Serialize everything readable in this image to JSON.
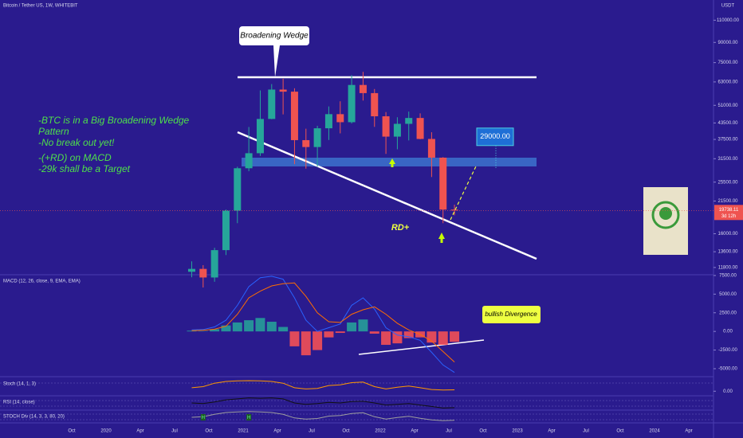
{
  "chart_data": [
    {
      "type": "candlestick",
      "title": "Bitcoin / Tether US, 1W, WHITEBIT",
      "y_axis_label": "USDT",
      "log_scale": true,
      "grid": false,
      "x": [
        "2020-08",
        "2020-09",
        "2020-10",
        "2020-11",
        "2020-12",
        "2021-01",
        "2021-02",
        "2021-03",
        "2021-04",
        "2021-05",
        "2021-06",
        "2021-07",
        "2021-08",
        "2021-09",
        "2021-10",
        "2021-11",
        "2021-12",
        "2022-01",
        "2022-02",
        "2022-03",
        "2022-04",
        "2022-05",
        "2022-06",
        "2022-07"
      ],
      "open": [
        11350,
        11650,
        10780,
        13800,
        19700,
        28900,
        33100,
        45100,
        58800,
        57700,
        37250,
        35000,
        41460,
        47100,
        43800,
        61300,
        56950,
        46200,
        38450,
        43160,
        45500,
        37650,
        31800,
        19900
      ],
      "high": [
        12470,
        12050,
        14100,
        19900,
        29300,
        41950,
        58350,
        61800,
        64850,
        59500,
        41300,
        42400,
        50500,
        52900,
        67000,
        69000,
        59100,
        48000,
        45800,
        48200,
        47450,
        40000,
        31950,
        20800
      ],
      "low": [
        10800,
        9850,
        10370,
        13200,
        17600,
        28130,
        32300,
        45000,
        47000,
        30000,
        28800,
        29300,
        37300,
        39600,
        43300,
        53250,
        42000,
        32900,
        34300,
        37150,
        37550,
        26700,
        17600,
        18900
      ],
      "close": [
        11650,
        10780,
        13800,
        19700,
        28900,
        33100,
        45100,
        58800,
        57700,
        37250,
        35000,
        41460,
        47100,
        43800,
        61300,
        56950,
        46200,
        38450,
        43160,
        45500,
        37650,
        31800,
        19900,
        19738.11
      ],
      "up_color": "#26a69a",
      "down_color": "#ef5350",
      "ylim": [
        11050,
        132000
      ],
      "yticks": [
        {
          "value": 110000,
          "label": "110000.00"
        },
        {
          "value": 90000,
          "label": "90000.00"
        },
        {
          "value": 75000,
          "label": "75000.00"
        },
        {
          "value": 63000,
          "label": "63000.00"
        },
        {
          "value": 51000,
          "label": "51000.00"
        },
        {
          "value": 43500,
          "label": "43500.00"
        },
        {
          "value": 37500,
          "label": "37500.00"
        },
        {
          "value": 31500,
          "label": "31500.00"
        },
        {
          "value": 25500,
          "label": "25500.00"
        },
        {
          "value": 21500,
          "label": "21500.00"
        },
        {
          "value": 16000,
          "label": "16000.00"
        },
        {
          "value": 13600,
          "label": "13600.00"
        },
        {
          "value": 11800,
          "label": "11800.00"
        }
      ],
      "last_price": 19738.11,
      "countdown": "3d 12h",
      "x_axis_labels": [
        "Oct",
        "2020",
        "Apr",
        "Jul",
        "Oct",
        "2021",
        "Apr",
        "Jul",
        "Oct",
        "2022",
        "Apr",
        "Jul",
        "Oct",
        "2023",
        "Apr",
        "Jul",
        "Oct",
        "2024",
        "Apr"
      ],
      "callout": "Broadening Wedge",
      "note_lines": [
        "-BTC is in a Big Broadening Wedge",
        "Pattern",
        "-No break out yet!",
        "-(+RD) on MACD",
        "-29k shall be a Target"
      ],
      "target": {
        "value": 29000,
        "label": "29000.00"
      },
      "divergence": "RD+"
    },
    {
      "type": "macd",
      "title": "MACD (12, 26, close, 9, EMA, EMA)",
      "x": [
        "2020-08",
        "2020-09",
        "2020-10",
        "2020-11",
        "2020-12",
        "2021-01",
        "2021-02",
        "2021-03",
        "2021-04",
        "2021-05",
        "2021-06",
        "2021-07",
        "2021-08",
        "2021-09",
        "2021-10",
        "2021-11",
        "2021-12",
        "2022-01",
        "2022-02",
        "2022-03",
        "2022-04",
        "2022-05",
        "2022-06",
        "2022-07"
      ],
      "histogram": [
        100,
        50,
        300,
        800,
        1200,
        1500,
        1800,
        1300,
        600,
        -2000,
        -3200,
        -2500,
        -800,
        -200,
        1200,
        1600,
        -300,
        -1800,
        -1600,
        -900,
        -800,
        -1500,
        -1800,
        -1400
      ],
      "macd": [
        200,
        250,
        600,
        1500,
        3500,
        6000,
        7200,
        7400,
        7000,
        4500,
        1500,
        0,
        500,
        1000,
        3500,
        4500,
        3000,
        500,
        -500,
        -700,
        -1200,
        -2800,
        -4500,
        -5500
      ],
      "signal": [
        100,
        150,
        300,
        700,
        2300,
        4500,
        5400,
        6100,
        6400,
        6500,
        4700,
        2500,
        1300,
        1200,
        2300,
        2900,
        3300,
        2300,
        1100,
        200,
        -400,
        -1300,
        -2700,
        -4100
      ],
      "pos_color": "#26a69a",
      "neg_color": "#ff5252",
      "macd_color": "#2962ff",
      "signal_color": "#ff6d00",
      "ylim": [
        -5750,
        7600
      ],
      "yticks": [
        {
          "value": 7500,
          "label": "7500.00"
        },
        {
          "value": 5000,
          "label": "5000.00"
        },
        {
          "value": 2500,
          "label": "2500.00"
        },
        {
          "value": 0,
          "label": "0.00"
        },
        {
          "value": -2500,
          "label": "-2500.00"
        },
        {
          "value": -5000,
          "label": "-5000.00"
        }
      ],
      "annotation": "bullish Divergence"
    },
    {
      "type": "line",
      "title": "Stoch (14, 1, 3)",
      "x": [
        "2020-08",
        "2020-09",
        "2020-10",
        "2020-11",
        "2020-12",
        "2021-01",
        "2021-02",
        "2021-03",
        "2021-04",
        "2021-05",
        "2021-06",
        "2021-07",
        "2021-08",
        "2021-09",
        "2021-10",
        "2021-11",
        "2021-12",
        "2022-01",
        "2022-02",
        "2022-03",
        "2022-04",
        "2022-05",
        "2022-06",
        "2022-07"
      ],
      "values": [
        30,
        40,
        70,
        85,
        90,
        92,
        90,
        85,
        70,
        30,
        20,
        25,
        50,
        55,
        75,
        80,
        40,
        20,
        35,
        45,
        30,
        15,
        10,
        12
      ],
      "color": "#ff9800",
      "ylim": [
        -40,
        120
      ],
      "yticks": [
        {
          "value": 0,
          "label": "0.00"
        }
      ]
    },
    {
      "type": "line",
      "title": "RSI (14, close)",
      "x": [
        "2020-08",
        "2020-09",
        "2020-10",
        "2020-11",
        "2020-12",
        "2021-01",
        "2021-02",
        "2021-03",
        "2021-04",
        "2021-05",
        "2021-06",
        "2021-07",
        "2021-08",
        "2021-09",
        "2021-10",
        "2021-11",
        "2021-12",
        "2022-01",
        "2022-02",
        "2022-03",
        "2022-04",
        "2022-05",
        "2022-06",
        "2022-07"
      ],
      "values": [
        55,
        52,
        60,
        70,
        75,
        80,
        78,
        80,
        75,
        55,
        48,
        52,
        58,
        55,
        62,
        63,
        55,
        45,
        48,
        52,
        45,
        38,
        30,
        32
      ],
      "color": "#111111",
      "ylim": [
        20,
        90
      ],
      "yticks": []
    },
    {
      "type": "line",
      "title": "STOCH Div (14, 3, 3, 80, 20)",
      "x": [
        "2020-08",
        "2020-09",
        "2020-10",
        "2020-11",
        "2020-12",
        "2021-01",
        "2021-02",
        "2021-03",
        "2021-04",
        "2021-05",
        "2021-06",
        "2021-07",
        "2021-08",
        "2021-09",
        "2021-10",
        "2021-11",
        "2021-12",
        "2022-01",
        "2022-02",
        "2022-03",
        "2022-04",
        "2022-05",
        "2022-06",
        "2022-07"
      ],
      "values": [
        40,
        45,
        65,
        80,
        85,
        88,
        85,
        80,
        65,
        35,
        25,
        30,
        50,
        55,
        72,
        78,
        45,
        25,
        38,
        48,
        32,
        18,
        12,
        15
      ],
      "color": "#9e9e9e",
      "ylim": [
        0,
        100
      ],
      "yticks": [],
      "signals": [
        {
          "x": "2020-09",
          "label": "H"
        },
        {
          "x": "2021-01",
          "label": "H"
        }
      ]
    }
  ]
}
